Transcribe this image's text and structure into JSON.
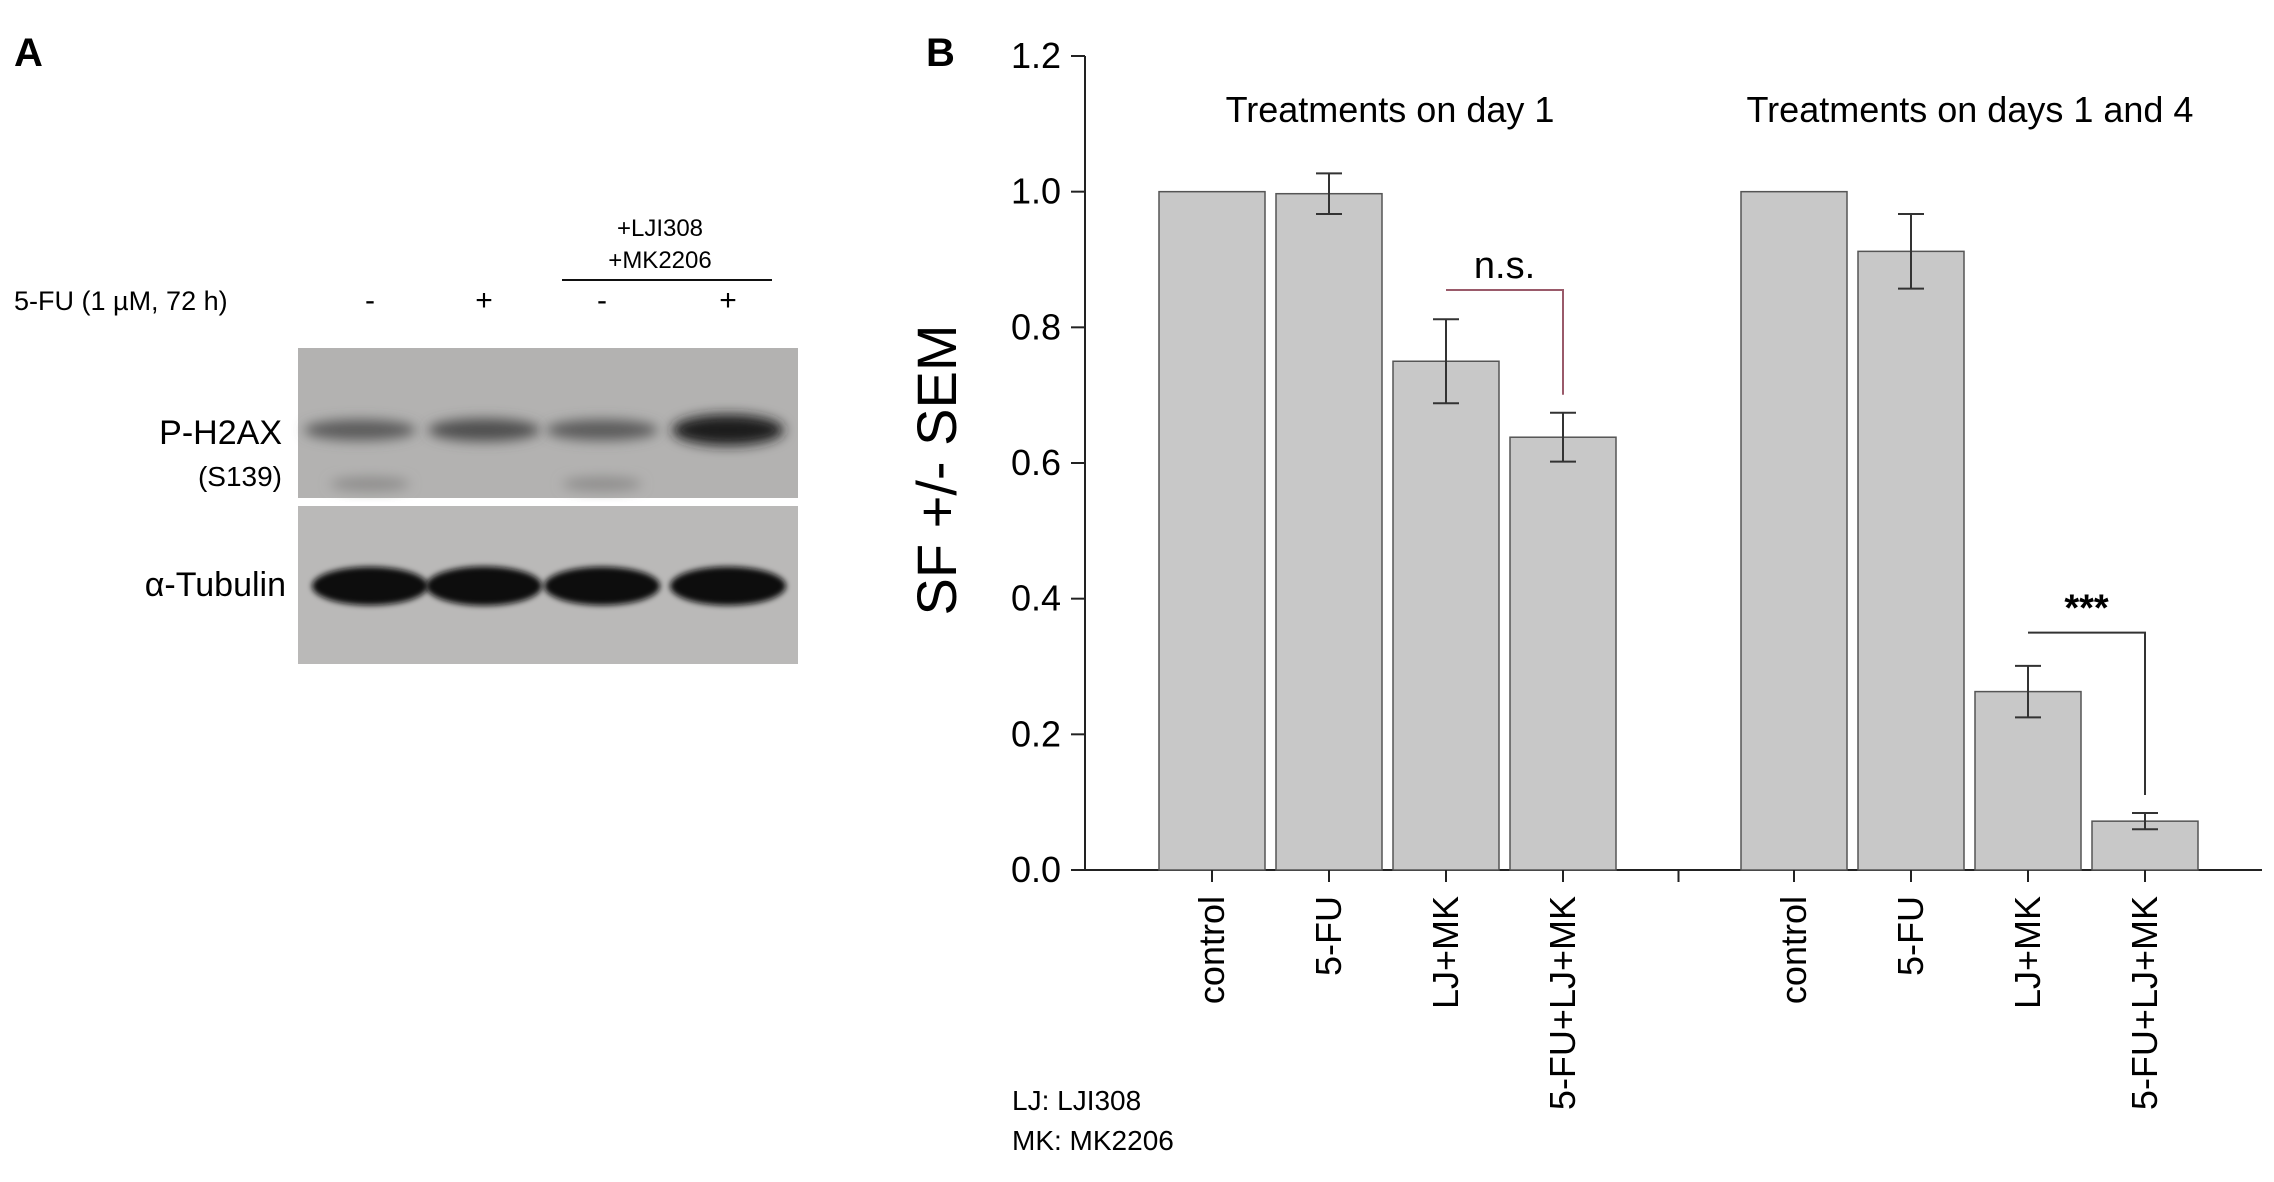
{
  "panel_a": {
    "letter": "A",
    "header_treatment_line1": "+LJI308",
    "header_treatment_line2": "+MK2206",
    "row_label": "5-FU (1 µM, 72 h)",
    "lane_signs": [
      "-",
      "+",
      "-",
      "+"
    ],
    "blot_labels": {
      "phospho_main": "P-H2AX",
      "phospho_sub": "(S139)",
      "loading": "α-Tubulin"
    },
    "band_intensity": {
      "phospho": [
        0.45,
        0.55,
        0.45,
        0.95
      ],
      "tubulin": [
        0.9,
        0.95,
        0.9,
        0.92
      ]
    }
  },
  "panel_b": {
    "letter": "B",
    "footnote_lines": [
      "LJ: LJI308",
      "MK: MK2206"
    ],
    "colors": {
      "bar": "#c8c8c8",
      "bar_edge": "#555555",
      "axis": "#222222"
    }
  },
  "chart_data": {
    "type": "bar",
    "ylabel": "SF +/- SEM",
    "xlabel": "",
    "ylim": [
      0,
      1.2
    ],
    "yticks": [
      "0.0",
      "0.2",
      "0.4",
      "0.6",
      "0.8",
      "1.0",
      "1.2"
    ],
    "groups": [
      {
        "title": "Treatments on day 1",
        "categories": [
          "control",
          "5-FU",
          "LJ+MK",
          "5-FU+LJ+MK"
        ],
        "values": [
          1.0,
          0.997,
          0.75,
          0.638
        ],
        "errors": [
          0.0,
          0.03,
          0.062,
          0.036
        ],
        "comparison": {
          "from": 2,
          "to": 3,
          "label": "n.s."
        }
      },
      {
        "title": "Treatments on days 1 and 4",
        "categories": [
          "control",
          "5-FU",
          "LJ+MK",
          "5-FU+LJ+MK"
        ],
        "values": [
          1.0,
          0.912,
          0.263,
          0.072
        ],
        "errors": [
          0.0,
          0.055,
          0.038,
          0.012
        ],
        "comparison": {
          "from": 2,
          "to": 3,
          "label": "***"
        }
      }
    ],
    "grid": false,
    "legend": "none"
  }
}
